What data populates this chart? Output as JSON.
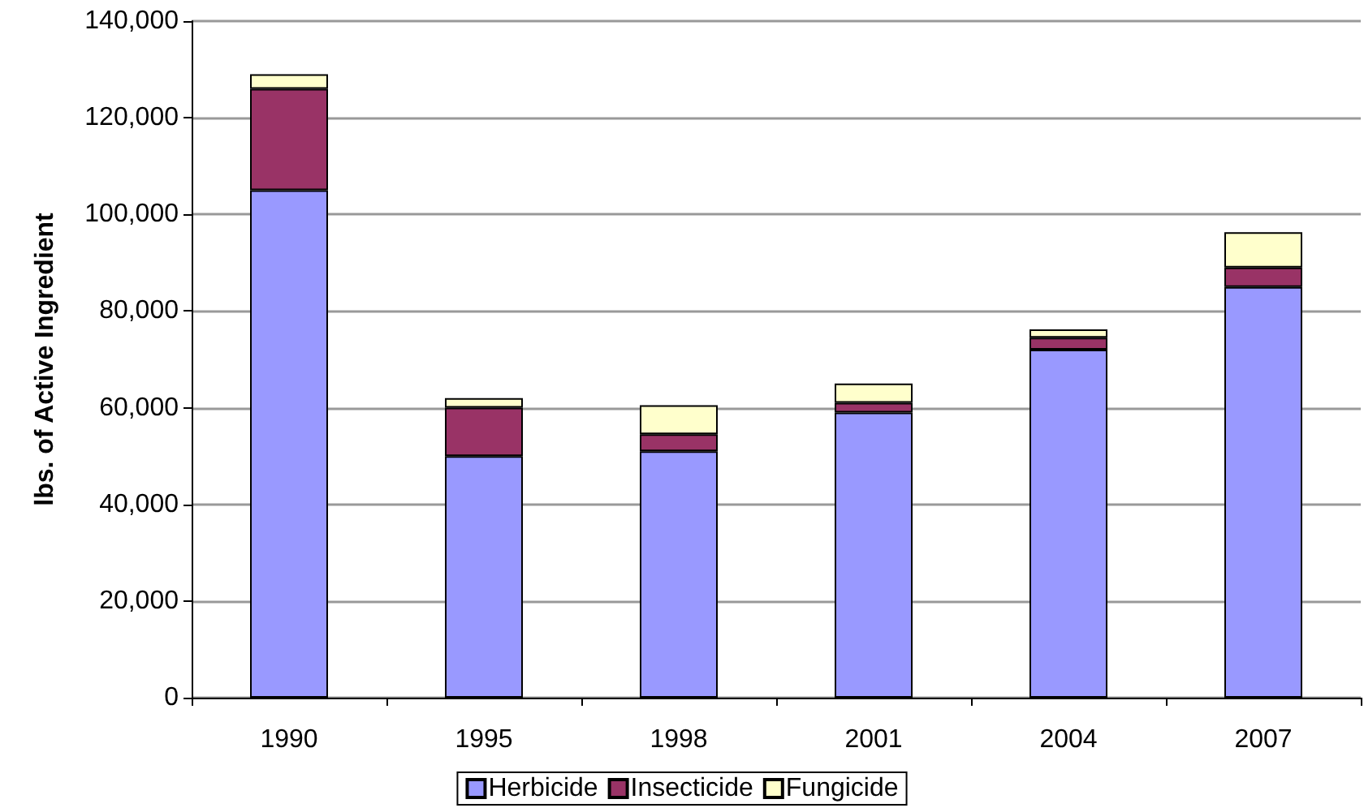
{
  "chart_data": {
    "type": "bar",
    "stacked": true,
    "ylabel": "lbs. of Active Ingredient",
    "categories": [
      "1990",
      "1995",
      "1998",
      "2001",
      "2004",
      "2007"
    ],
    "series": [
      {
        "name": "Herbicide",
        "color": "#9999ff",
        "values": [
          105000,
          50000,
          51000,
          59000,
          72000,
          85000
        ]
      },
      {
        "name": "Insecticide",
        "color": "#993366",
        "values": [
          21000,
          10000,
          3500,
          2000,
          2500,
          4000
        ]
      },
      {
        "name": "Fungicide",
        "color": "#ffffcc",
        "values": [
          3000,
          2000,
          6000,
          4000,
          1700,
          7300
        ]
      }
    ],
    "ylim": [
      0,
      140000
    ],
    "yticks": [
      0,
      {
        "value": 20000,
        "label": "20,000"
      },
      {
        "value": 40000,
        "label": "40,000"
      },
      {
        "value": 60000,
        "label": "60,000"
      },
      {
        "value": 80000,
        "label": "80,000"
      },
      {
        "value": 100000,
        "label": "100,000"
      },
      {
        "value": 120000,
        "label": "120,000"
      },
      {
        "value": 140000,
        "label": "140,000"
      }
    ],
    "grid": "y",
    "legend": "bottom"
  }
}
